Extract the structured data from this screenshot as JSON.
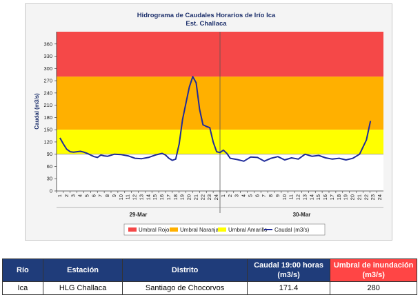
{
  "chart_data": {
    "type": "line",
    "title": "Hidrograma de Caudales Horarios de Irío Ica",
    "subtitle": "Est. Challaca",
    "ylabel": "Caudal  (m3/s)",
    "ylim": [
      0,
      390
    ],
    "yticks": [
      0,
      30,
      60,
      90,
      120,
      150,
      180,
      210,
      240,
      270,
      300,
      330,
      360
    ],
    "xticks": [
      "1",
      "2",
      "3",
      "4",
      "5",
      "6",
      "7",
      "8",
      "9",
      "10",
      "11",
      "12",
      "13",
      "14",
      "15",
      "16",
      "17",
      "18",
      "19",
      "20",
      "21",
      "22",
      "23",
      "24",
      "1",
      "2",
      "3",
      "4",
      "5",
      "6",
      "7",
      "8",
      "9",
      "10",
      "11",
      "12",
      "13",
      "14",
      "15",
      "16",
      "17",
      "18",
      "19",
      "20",
      "21",
      "22",
      "23",
      "24"
    ],
    "day_labels": [
      "29-Mar",
      "30-Mar"
    ],
    "bands": [
      {
        "name": "Umbral Rojo",
        "from": 280,
        "to": 390,
        "color": "#f54848"
      },
      {
        "name": "Umbral Naranja",
        "from": 150,
        "to": 280,
        "color": "#ffb000"
      },
      {
        "name": "Umbral Amarillo",
        "from": 90,
        "to": 150,
        "color": "#ffff00"
      }
    ],
    "series": [
      {
        "name": "Caudal (m3/s)",
        "color": "#1f2b9a",
        "x": [
          0,
          0.5,
          1,
          1.5,
          2,
          2.5,
          3,
          3.5,
          4,
          4.5,
          5,
          5.5,
          6,
          6.5,
          7,
          8,
          9,
          10,
          11,
          12,
          13,
          14,
          15,
          15.5,
          16,
          16.5,
          17,
          17.5,
          18,
          18.5,
          19,
          19.5,
          20,
          20.5,
          21,
          21.5,
          22,
          22.5,
          23,
          23.5,
          24,
          24.5,
          25,
          26,
          27,
          28,
          29,
          30,
          31,
          32,
          33,
          34,
          35,
          36,
          37,
          38,
          39,
          40,
          41,
          42,
          43,
          44,
          45,
          45.6
        ],
        "values": [
          130,
          115,
          102,
          96,
          95,
          96,
          97,
          95,
          92,
          88,
          84,
          82,
          88,
          86,
          85,
          90,
          89,
          86,
          80,
          79,
          82,
          88,
          92,
          88,
          80,
          75,
          78,
          115,
          175,
          215,
          255,
          280,
          265,
          200,
          162,
          158,
          155,
          120,
          96,
          94,
          100,
          92,
          80,
          77,
          73,
          83,
          82,
          73,
          80,
          84,
          76,
          81,
          78,
          90,
          85,
          87,
          81,
          78,
          80,
          76,
          80,
          90,
          125,
          171.4
        ]
      }
    ],
    "legend": [
      "Umbral Rojo",
      "Umbral Naranja",
      "Umbral Amarillo",
      "Caudal (m3/s)"
    ],
    "grid": false,
    "legend_position": "bottom"
  },
  "table": {
    "headers": [
      "Río",
      "Estación",
      "Distrito",
      "Caudal 19:00 horas (m3/s)",
      "Umbral de inundación (m3/s)"
    ],
    "row": [
      "Ica",
      "HLG Challaca",
      "Santiago de Chocorvos",
      "171.4",
      "280"
    ]
  }
}
